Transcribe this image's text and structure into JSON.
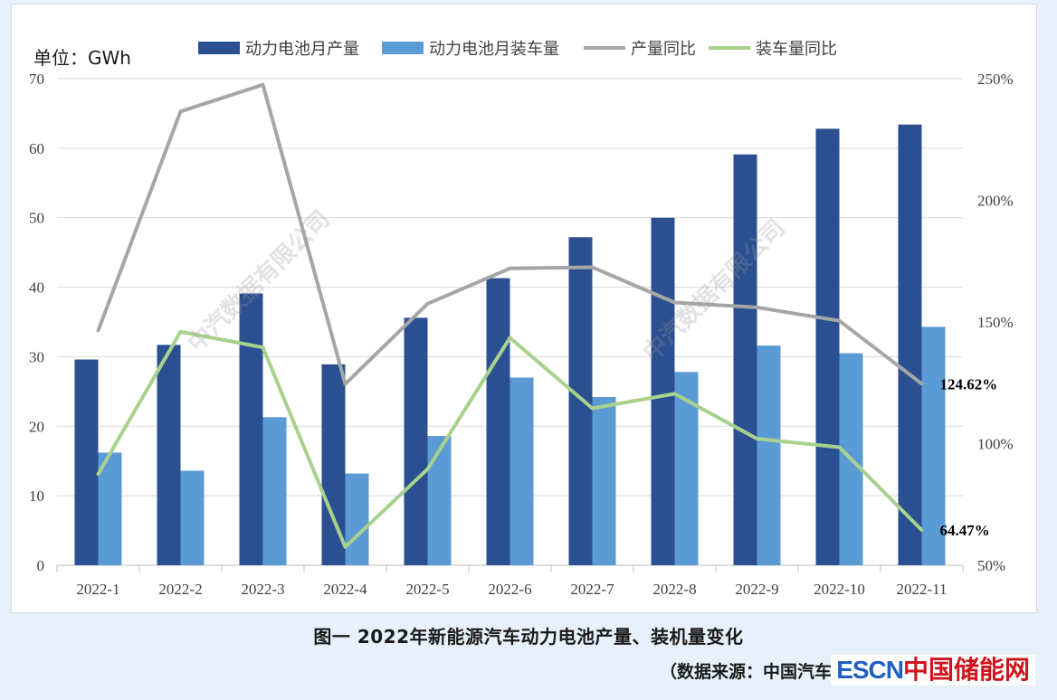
{
  "chart_data": {
    "type": "bar",
    "unit_label": "单位：GWh",
    "categories": [
      "2022-1",
      "2022-2",
      "2022-3",
      "2022-4",
      "2022-5",
      "2022-6",
      "2022-7",
      "2022-8",
      "2022-9",
      "2022-10",
      "2022-11"
    ],
    "series": [
      {
        "name": "动力电池月产量",
        "kind": "bar",
        "axis": "left",
        "color": "#2b5092",
        "values": [
          29.6,
          31.7,
          39.1,
          28.9,
          35.6,
          41.3,
          47.2,
          50.0,
          59.1,
          62.8,
          63.4
        ]
      },
      {
        "name": "动力电池月装车量",
        "kind": "bar",
        "axis": "left",
        "color": "#5b9bd5",
        "values": [
          16.2,
          13.6,
          21.3,
          13.2,
          18.6,
          27.0,
          24.2,
          27.8,
          31.6,
          30.5,
          34.3
        ]
      },
      {
        "name": "产量同比",
        "kind": "line",
        "axis": "right",
        "color": "#a6a6a6",
        "values": [
          146.5,
          236.5,
          247.5,
          124.5,
          157.5,
          172,
          172.5,
          158,
          156,
          150.5,
          124.62
        ]
      },
      {
        "name": "装车量同比",
        "kind": "line",
        "axis": "right",
        "color": "#a9d18e",
        "values": [
          87.5,
          146,
          139.5,
          57.5,
          89.5,
          143.5,
          114.5,
          120.5,
          102,
          98.5,
          64.47
        ]
      }
    ],
    "left_axis": {
      "ylim": [
        0,
        70
      ],
      "ticks": [
        "0",
        "10",
        "20",
        "30",
        "40",
        "50",
        "60",
        "70"
      ]
    },
    "right_axis": {
      "ylim": [
        50,
        250
      ],
      "ticks": [
        "50%",
        "100%",
        "150%",
        "200%",
        "250%"
      ]
    },
    "annotations": [
      {
        "series": "产量同比",
        "index": 10,
        "text": "124.62%"
      },
      {
        "series": "装车量同比",
        "index": 10,
        "text": "64.47%"
      }
    ],
    "legend_position": "top"
  },
  "watermark_text": "中汽数据有限公司",
  "caption": "图一  2022年新能源汽车动力电池产量、装机量变化",
  "source_text": "（数据来源：中国汽车动力电池产业创新联盟）",
  "logo": {
    "part1": "ESCN",
    "part2": "中国储能网"
  }
}
